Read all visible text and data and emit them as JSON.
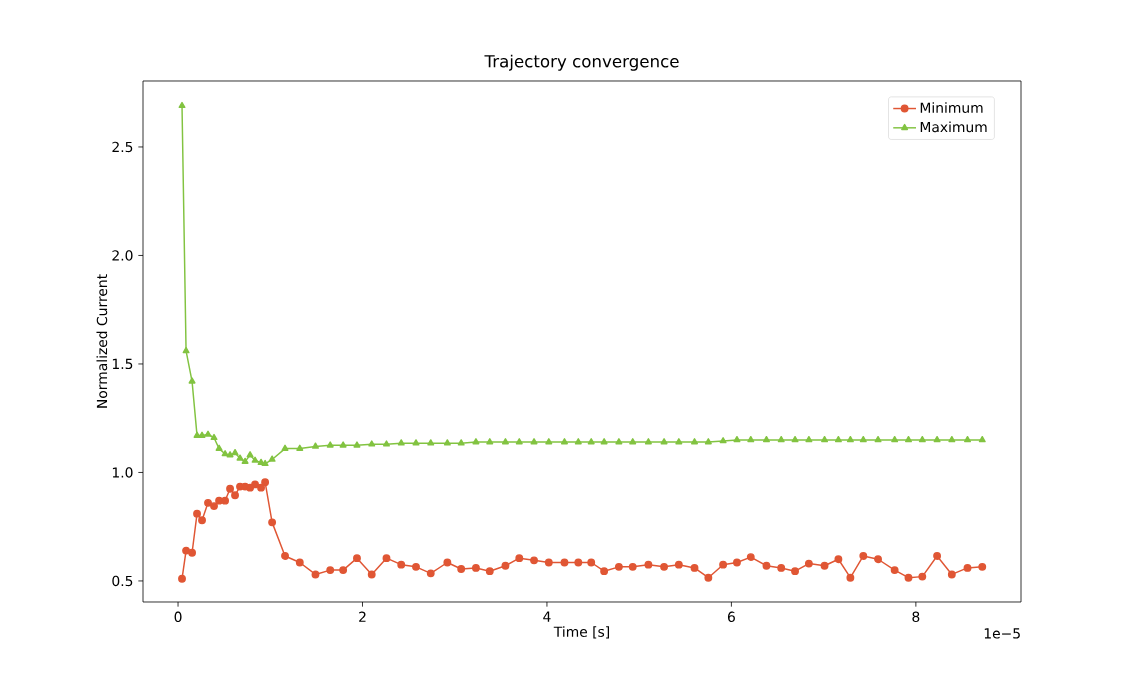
{
  "chart_data": {
    "type": "line",
    "title": "Trajectory convergence",
    "xlabel": "Time [s]",
    "ylabel": "Normalized Current",
    "annotations": [
      "1e−5"
    ],
    "x": [
      0.043,
      0.087,
      0.152,
      0.206,
      0.26,
      0.325,
      0.39,
      0.445,
      0.51,
      0.564,
      0.618,
      0.672,
      0.727,
      0.781,
      0.835,
      0.9,
      0.944,
      1.02,
      1.16,
      1.32,
      1.49,
      1.65,
      1.79,
      1.94,
      2.1,
      2.26,
      2.42,
      2.58,
      2.74,
      2.92,
      3.07,
      3.23,
      3.38,
      3.55,
      3.7,
      3.86,
      4.02,
      4.19,
      4.34,
      4.48,
      4.62,
      4.78,
      4.93,
      5.1,
      5.27,
      5.43,
      5.6,
      5.75,
      5.91,
      6.06,
      6.21,
      6.38,
      6.54,
      6.69,
      6.84,
      7.01,
      7.16,
      7.29,
      7.43,
      7.59,
      7.77,
      7.92,
      8.07,
      8.23,
      8.39,
      8.56,
      8.72
    ],
    "series": [
      {
        "name": "Minimum",
        "color": "#e05634",
        "marker": "circle",
        "values": [
          0.51,
          0.64,
          0.63,
          0.81,
          0.78,
          0.86,
          0.845,
          0.87,
          0.87,
          0.925,
          0.895,
          0.935,
          0.935,
          0.93,
          0.945,
          0.93,
          0.955,
          0.77,
          0.615,
          0.585,
          0.53,
          0.55,
          0.55,
          0.605,
          0.53,
          0.605,
          0.575,
          0.565,
          0.535,
          0.585,
          0.555,
          0.56,
          0.545,
          0.57,
          0.605,
          0.595,
          0.585,
          0.585,
          0.585,
          0.585,
          0.545,
          0.565,
          0.565,
          0.575,
          0.565,
          0.575,
          0.56,
          0.515,
          0.575,
          0.585,
          0.61,
          0.57,
          0.56,
          0.545,
          0.58,
          0.57,
          0.6,
          0.515,
          0.615,
          0.6,
          0.55,
          0.515,
          0.52,
          0.615,
          0.53,
          0.56,
          0.565
        ]
      },
      {
        "name": "Maximum",
        "color": "#82c341",
        "marker": "triangle",
        "values": [
          2.69,
          1.56,
          1.42,
          1.17,
          1.17,
          1.175,
          1.16,
          1.11,
          1.085,
          1.08,
          1.09,
          1.065,
          1.05,
          1.08,
          1.055,
          1.045,
          1.04,
          1.06,
          1.11,
          1.11,
          1.12,
          1.125,
          1.125,
          1.125,
          1.13,
          1.13,
          1.135,
          1.135,
          1.135,
          1.135,
          1.135,
          1.14,
          1.14,
          1.14,
          1.14,
          1.14,
          1.14,
          1.14,
          1.14,
          1.14,
          1.14,
          1.14,
          1.14,
          1.14,
          1.14,
          1.14,
          1.14,
          1.14,
          1.145,
          1.15,
          1.15,
          1.15,
          1.15,
          1.15,
          1.15,
          1.15,
          1.15,
          1.15,
          1.15,
          1.15,
          1.15,
          1.15,
          1.15,
          1.15,
          1.15,
          1.15,
          1.15
        ]
      }
    ],
    "xlim": [
      -0.38,
      9.14
    ],
    "ylim": [
      0.403,
      2.804
    ],
    "xticks": [
      0,
      2,
      4,
      6,
      8
    ],
    "yticks": [
      0.5,
      {
        "value": 1.0,
        "label": "1.0"
      },
      1.5,
      {
        "value": 2.0,
        "label": "2.0"
      },
      2.5
    ],
    "legend": "top right",
    "grid": false,
    "line_style": "solid"
  }
}
